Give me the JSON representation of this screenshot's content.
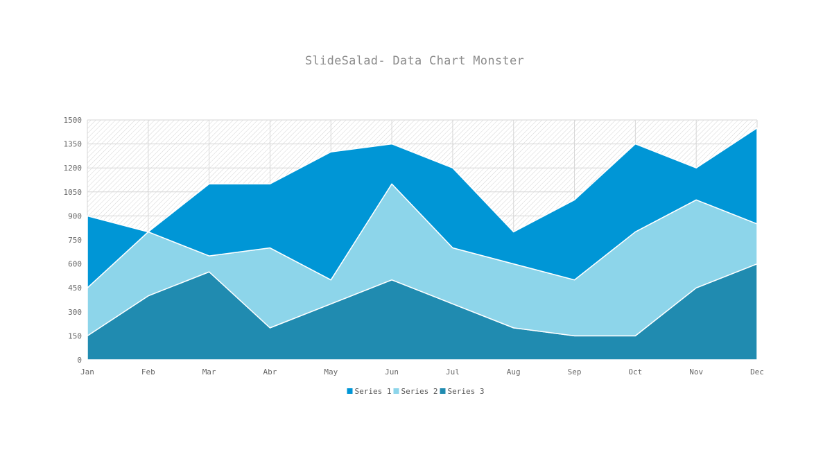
{
  "chart_data": {
    "type": "area",
    "stacked": true,
    "title": "SlideSalad- Data Chart Monster",
    "xlabel": "",
    "ylabel": "",
    "categories": [
      "Jan",
      "Feb",
      "Mar",
      "Abr",
      "May",
      "Jun",
      "Jul",
      "Aug",
      "Sep",
      "Oct",
      "Nov",
      "Dec"
    ],
    "ylim": [
      0,
      1500
    ],
    "yticks": [
      0,
      150,
      300,
      450,
      600,
      750,
      900,
      1050,
      1200,
      1350,
      1500
    ],
    "grid": true,
    "legend_position": "bottom",
    "series": [
      {
        "name": "Series 1",
        "color": "#0096d6",
        "values": [
          450,
          0,
          450,
          400,
          800,
          250,
          500,
          200,
          500,
          550,
          200,
          600
        ]
      },
      {
        "name": "Series 2",
        "color": "#8dd5ea",
        "values": [
          300,
          400,
          100,
          500,
          150,
          600,
          350,
          400,
          350,
          650,
          550,
          250
        ]
      },
      {
        "name": "Series 3",
        "color": "#208bb0",
        "values": [
          150,
          400,
          550,
          200,
          350,
          500,
          350,
          200,
          150,
          150,
          450,
          600
        ]
      }
    ]
  }
}
